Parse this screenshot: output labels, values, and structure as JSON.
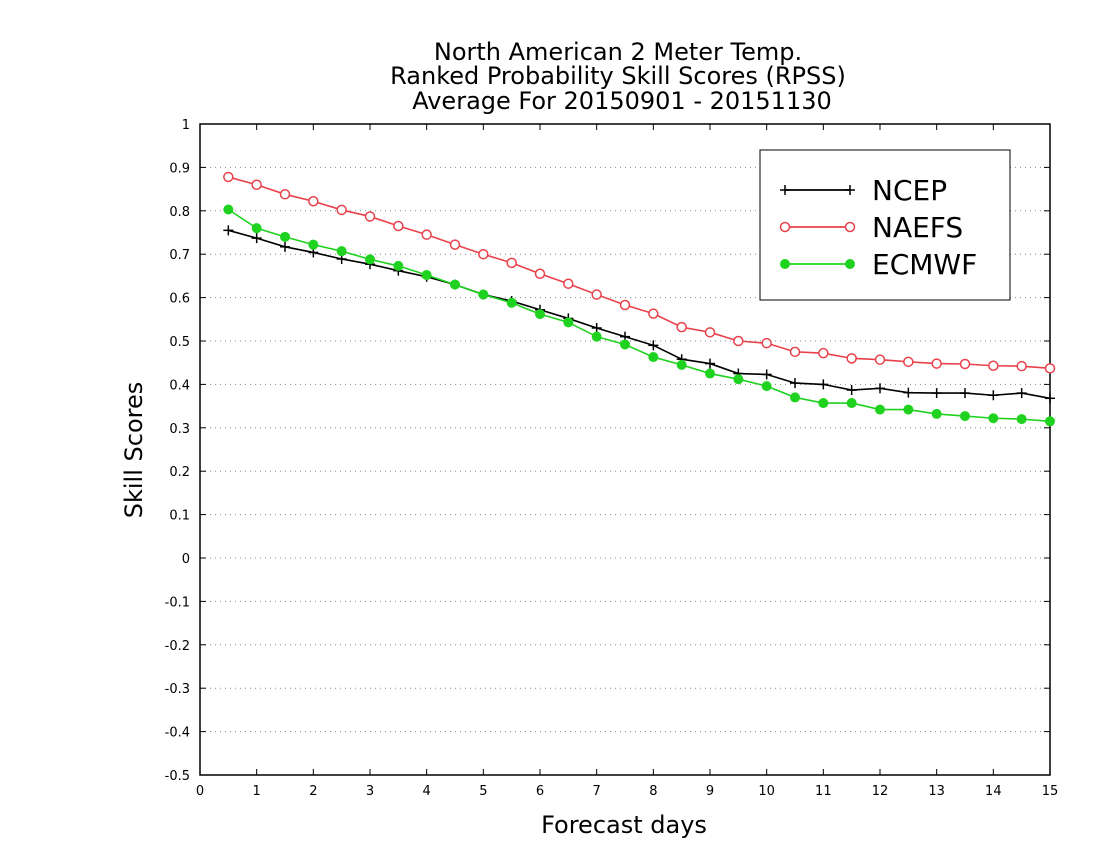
{
  "chart_data": {
    "type": "line",
    "title": [
      "North American 2 Meter Temp.",
      "Ranked Probability Skill Scores (RPSS)",
      "Average For 20150901 - 20151130"
    ],
    "xlabel": "Forecast days",
    "ylabel": "Skill Scores",
    "xlim": [
      0,
      15
    ],
    "ylim": [
      -0.5,
      1
    ],
    "x_ticks": [
      0,
      1,
      2,
      3,
      4,
      5,
      6,
      7,
      8,
      9,
      10,
      11,
      12,
      13,
      14,
      15
    ],
    "x_tick_labels": [
      "0",
      "1",
      "2",
      "3",
      "4",
      "5",
      "6",
      "7",
      "8",
      "9",
      "10",
      "11",
      "12",
      "13",
      "14",
      "15"
    ],
    "y_ticks": [
      -0.5,
      -0.4,
      -0.3,
      -0.2,
      -0.1,
      0,
      0.1,
      0.2,
      0.3,
      0.4,
      0.5,
      0.6,
      0.7,
      0.8,
      0.9,
      1
    ],
    "y_tick_labels": [
      "-0.5",
      "-0.4",
      "-0.3",
      "-0.2",
      "-0.1",
      "0",
      "0.1",
      "0.2",
      "0.3",
      "0.4",
      "0.5",
      "0.6",
      "0.7",
      "0.8",
      "0.9",
      "1"
    ],
    "grid": "horizontal dotted",
    "legend_position": "top-right",
    "x": [
      0.5,
      1,
      1.5,
      2,
      2.5,
      3,
      3.5,
      4,
      4.5,
      5,
      5.5,
      6,
      6.5,
      7,
      7.5,
      8,
      8.5,
      9,
      9.5,
      10,
      10.5,
      11,
      11.5,
      12,
      12.5,
      13,
      13.5,
      14,
      14.5,
      15
    ],
    "series": [
      {
        "name": "NCEP",
        "color": "#000000",
        "marker": "plus",
        "values": [
          0.755,
          0.737,
          0.717,
          0.704,
          0.689,
          0.677,
          0.662,
          0.648,
          0.63,
          0.607,
          0.592,
          0.572,
          0.552,
          0.53,
          0.51,
          0.49,
          0.458,
          0.448,
          0.425,
          0.423,
          0.403,
          0.4,
          0.387,
          0.391,
          0.381,
          0.38,
          0.38,
          0.375,
          0.38,
          0.368
        ]
      },
      {
        "name": "NAEFS",
        "color": "#e8414b",
        "marker": "open-circle",
        "values": [
          0.878,
          0.86,
          0.838,
          0.822,
          0.802,
          0.787,
          0.765,
          0.745,
          0.722,
          0.7,
          0.68,
          0.655,
          0.632,
          0.607,
          0.583,
          0.563,
          0.532,
          0.52,
          0.5,
          0.495,
          0.475,
          0.472,
          0.46,
          0.457,
          0.452,
          0.448,
          0.447,
          0.443,
          0.442,
          0.437
        ]
      },
      {
        "name": "ECMWF",
        "color": "#1fd21f",
        "marker": "filled-circle",
        "values": [
          0.803,
          0.76,
          0.74,
          0.722,
          0.707,
          0.688,
          0.673,
          0.652,
          0.63,
          0.607,
          0.588,
          0.562,
          0.543,
          0.51,
          0.492,
          0.463,
          0.445,
          0.425,
          0.412,
          0.396,
          0.37,
          0.357,
          0.357,
          0.342,
          0.342,
          0.332,
          0.327,
          0.322,
          0.32,
          0.315
        ]
      }
    ]
  }
}
